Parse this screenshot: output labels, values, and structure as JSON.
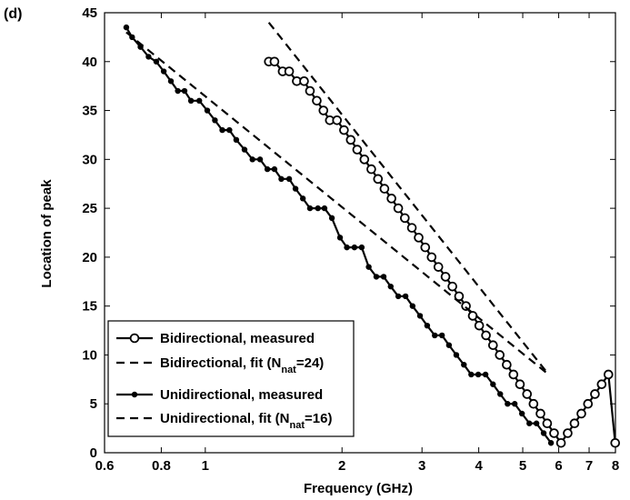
{
  "panel_label": "(d)",
  "chart_data": {
    "type": "line",
    "xlabel": "Frequency (GHz)",
    "ylabel": "Location of peak",
    "xscale": "log",
    "xlim": [
      0.6,
      8
    ],
    "ylim": [
      0,
      45
    ],
    "xticks": [
      0.6,
      0.8,
      1,
      2,
      3,
      4,
      5,
      6,
      7,
      8
    ],
    "xtick_labels": [
      "0.6",
      "0.8",
      "1",
      "2",
      "3",
      "4",
      "5",
      "6",
      "7",
      "8"
    ],
    "yticks": [
      0,
      5,
      10,
      15,
      20,
      25,
      30,
      35,
      40,
      45
    ],
    "ytick_labels": [
      "0",
      "5",
      "10",
      "15",
      "20",
      "25",
      "30",
      "35",
      "40",
      "45"
    ],
    "grid": false,
    "legend_position": "bottom-left",
    "series": [
      {
        "name": "Bidirectional, measured",
        "style": "solid-open-circle",
        "x": [
          1.38,
          1.42,
          1.48,
          1.53,
          1.59,
          1.65,
          1.7,
          1.76,
          1.82,
          1.88,
          1.95,
          2.02,
          2.09,
          2.16,
          2.24,
          2.32,
          2.4,
          2.48,
          2.57,
          2.66,
          2.75,
          2.85,
          2.95,
          3.05,
          3.15,
          3.26,
          3.38,
          3.5,
          3.62,
          3.75,
          3.88,
          4.01,
          4.15,
          4.3,
          4.45,
          4.61,
          4.77,
          4.93,
          5.11,
          5.28,
          5.47,
          5.66,
          5.86,
          6.07,
          6.28,
          6.5,
          6.73,
          6.96,
          7.21,
          7.46,
          7.72,
          7.99
        ],
        "values": [
          40,
          40,
          39,
          39,
          38,
          38,
          37,
          36,
          35,
          34,
          34,
          33,
          32,
          31,
          30,
          29,
          28,
          27,
          26,
          25,
          24,
          23,
          22,
          21,
          20,
          19,
          18,
          17,
          16,
          15,
          14,
          13,
          12,
          11,
          10,
          9,
          8,
          7,
          6,
          5,
          4,
          3,
          2,
          1,
          2,
          3,
          4,
          5,
          6,
          7,
          8,
          1
        ]
      },
      {
        "name": "Bidirectional, fit (N",
        "name_sub": "nat",
        "name_tail": "=24)",
        "style": "dashed",
        "x": [
          1.38,
          5.7
        ],
        "values": [
          44,
          8
        ]
      },
      {
        "name": "Unidirectional, measured",
        "style": "solid-filled-dot",
        "x": [
          0.67,
          0.69,
          0.72,
          0.75,
          0.78,
          0.81,
          0.84,
          0.87,
          0.9,
          0.93,
          0.97,
          1.01,
          1.05,
          1.09,
          1.13,
          1.17,
          1.22,
          1.27,
          1.32,
          1.37,
          1.42,
          1.47,
          1.53,
          1.58,
          1.64,
          1.7,
          1.77,
          1.83,
          1.9,
          1.98,
          2.05,
          2.13,
          2.21,
          2.29,
          2.38,
          2.47,
          2.56,
          2.66,
          2.76,
          2.86,
          2.97,
          3.08,
          3.2,
          3.32,
          3.44,
          3.57,
          3.71,
          3.85,
          3.99,
          4.14,
          4.3,
          4.46,
          4.63,
          4.8,
          4.98,
          5.17,
          5.36,
          5.56,
          5.77
        ],
        "values": [
          43.5,
          42.5,
          41.5,
          40.5,
          40,
          39,
          38,
          37,
          37,
          36,
          36,
          35,
          34,
          33,
          33,
          32,
          31,
          30,
          30,
          29,
          29,
          28,
          28,
          27,
          26,
          25,
          25,
          25,
          24,
          22,
          21,
          21,
          21,
          19,
          18,
          18,
          17,
          16,
          16,
          15,
          14,
          13,
          12,
          12,
          11,
          10,
          9,
          8,
          8,
          8,
          7,
          6,
          5,
          5,
          4,
          3,
          3,
          2,
          1
        ]
      },
      {
        "name": "Unidirectional, fit (N",
        "name_sub": "nat",
        "name_tail": "=16)",
        "style": "dashed",
        "x": [
          0.67,
          5.7
        ],
        "values": [
          43,
          8
        ]
      }
    ]
  }
}
